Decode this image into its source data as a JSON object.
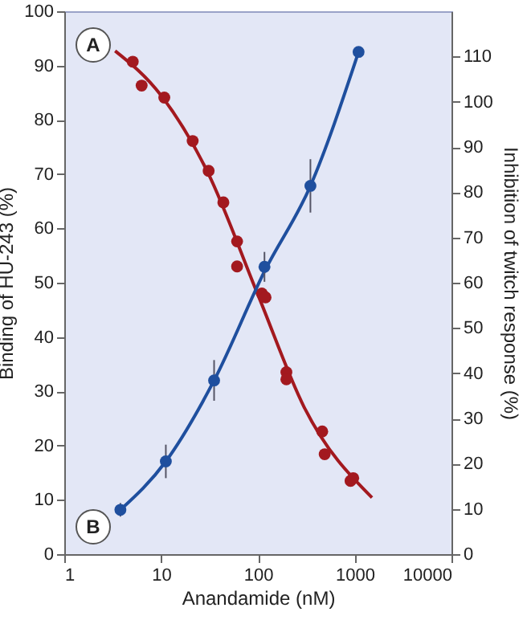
{
  "chart_data": {
    "type": "scatter",
    "xlabel": "Anandamide (nM)",
    "ylabel": "Binding of HU-243 (%)",
    "y2label": "Inhibition of twitch response (%)",
    "log": "x",
    "xlim": [
      1,
      10000
    ],
    "xticks": [
      1,
      10,
      100,
      1000,
      10000
    ],
    "ylim": [
      0,
      100
    ],
    "yticks": [
      0,
      10,
      20,
      30,
      40,
      50,
      60,
      70,
      80,
      90,
      100
    ],
    "y2lim": [
      0,
      120
    ],
    "y2ticks": [
      0,
      10,
      20,
      30,
      40,
      50,
      60,
      70,
      80,
      90,
      100,
      110
    ],
    "marker": "circle",
    "annotations": [
      "A",
      "B"
    ],
    "series": [
      {
        "type": "line",
        "marker": "none",
        "color": "#a3191f",
        "x": [
          3.35,
          10,
          30,
          100,
          300,
          1510
        ],
        "values": [
          92.7,
          84.5,
          70.5,
          47.8,
          27.1,
          10.4
        ]
      },
      {
        "color": "#a3191f",
        "x": [
          5.1,
          6.3,
          10.8,
          21.2,
          31,
          44,
          61,
          61,
          110,
          120,
          197,
          197,
          462,
          490,
          906,
          966
        ],
        "values": [
          90.7,
          86.3,
          84.1,
          76.1,
          70.6,
          64.8,
          57.6,
          53.0,
          48.0,
          47.3,
          33.5,
          32.2,
          22.6,
          18.4,
          13.5,
          14.0
        ]
      },
      {
        "type": "line",
        "marker": "none",
        "axis": "y2",
        "color": "#1f4f9e",
        "x": [
          3.8,
          11.2,
          35.3,
          117,
          349,
          1097
        ],
        "values": [
          9.8,
          20.5,
          38.4,
          62.5,
          81.4,
          111.0
        ]
      },
      {
        "axis": "y2",
        "color": "#1f4f9e",
        "x": [
          3.8,
          11.2,
          35.3,
          117,
          349,
          1097
        ],
        "values": [
          9.8,
          20.5,
          38.4,
          63.5,
          81.4,
          111.0
        ],
        "errors": [
          1.5,
          3.7,
          4.5,
          3.3,
          5.9,
          null
        ]
      }
    ]
  }
}
